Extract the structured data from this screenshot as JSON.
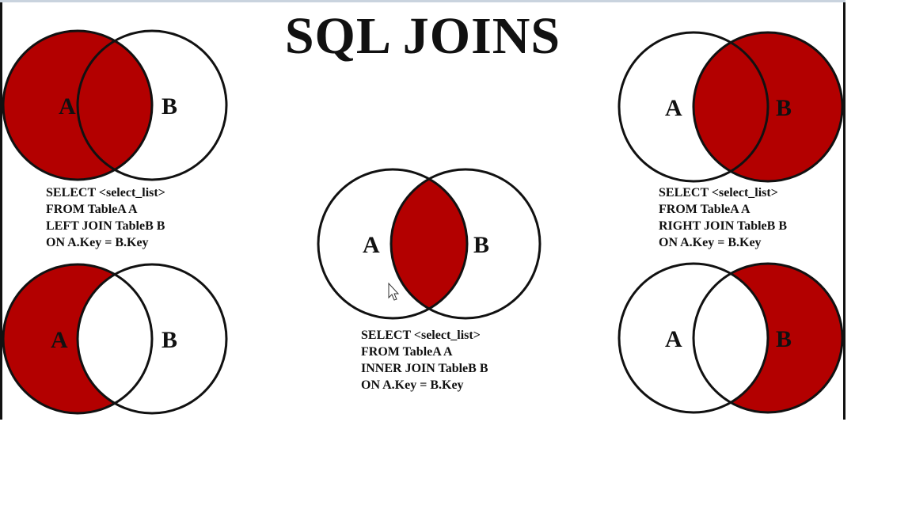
{
  "title": "SQL JOINS",
  "colors": {
    "fill": "#b30000",
    "stroke": "#111111",
    "background": "#ffffff"
  },
  "circle_labels": {
    "a": "A",
    "b": "B"
  },
  "queries": {
    "left_join": [
      "SELECT <select_list>",
      "FROM TableA A",
      "LEFT JOIN TableB B",
      "ON A.Key = B.Key"
    ],
    "inner_join": [
      "SELECT <select_list>",
      "FROM TableA A",
      "INNER JOIN TableB B",
      "ON A.Key = B.Key"
    ],
    "right_join": [
      "SELECT <select_list>",
      "FROM TableA A",
      "RIGHT JOIN TableB B",
      "ON A.Key = B.Key"
    ]
  },
  "cursor_icon": "arrow-cursor-icon"
}
